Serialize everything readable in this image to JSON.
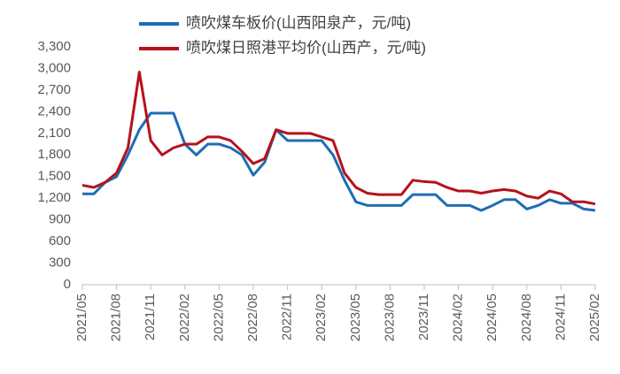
{
  "chart_data": {
    "type": "line",
    "categories": [
      "2021/05",
      null,
      null,
      "2021/08",
      null,
      null,
      "2021/11",
      null,
      null,
      "2022/02",
      null,
      null,
      "2022/05",
      null,
      null,
      "2022/08",
      null,
      null,
      "2022/11",
      null,
      null,
      "2023/02",
      null,
      null,
      "2023/05",
      null,
      null,
      "2023/08",
      null,
      null,
      "2023/11",
      null,
      null,
      "2024/02",
      null,
      null,
      "2024/05",
      null,
      null,
      "2024/08",
      null,
      null,
      "2024/11",
      null,
      null,
      "2025/02"
    ],
    "series": [
      {
        "name": "喷吹煤车板价(山西阳泉产，元/吨)",
        "color": "#1f6db4",
        "values": [
          1260,
          1260,
          1420,
          1500,
          1800,
          2150,
          2380,
          2380,
          2380,
          1950,
          1800,
          1950,
          1950,
          1900,
          1800,
          1520,
          1700,
          2150,
          2000,
          2000,
          2000,
          2000,
          1800,
          1450,
          1150,
          1100,
          1100,
          1100,
          1100,
          1250,
          1250,
          1250,
          1100,
          1100,
          1100,
          1030,
          1100,
          1180,
          1180,
          1050,
          1100,
          1180,
          1130,
          1130,
          1050,
          1030
        ]
      },
      {
        "name": "喷吹煤日照港平均价(山西产，元/吨)",
        "color": "#b5121b",
        "values": [
          1380,
          1350,
          1420,
          1550,
          1900,
          2950,
          2000,
          1800,
          1900,
          1950,
          1950,
          2050,
          2050,
          2000,
          1850,
          1680,
          1750,
          2150,
          2100,
          2100,
          2100,
          2050,
          2000,
          1550,
          1350,
          1270,
          1250,
          1250,
          1250,
          1450,
          1430,
          1420,
          1350,
          1300,
          1300,
          1270,
          1300,
          1320,
          1300,
          1230,
          1200,
          1300,
          1260,
          1150,
          1150,
          1120
        ]
      }
    ],
    "ylim": [
      0,
      3300
    ],
    "yticks": [
      0,
      300,
      600,
      900,
      {
        "value": 1200,
        "label": "1,200"
      },
      {
        "value": 1500,
        "label": "1,500"
      },
      {
        "value": 1800,
        "label": "1,800"
      },
      {
        "value": 2100,
        "label": "2,100"
      },
      {
        "value": 2400,
        "label": "2,400"
      },
      {
        "value": 2700,
        "label": "2,700"
      },
      {
        "value": 3000,
        "label": "3,000"
      },
      {
        "value": 3300,
        "label": "3,300"
      }
    ],
    "grid": false
  }
}
